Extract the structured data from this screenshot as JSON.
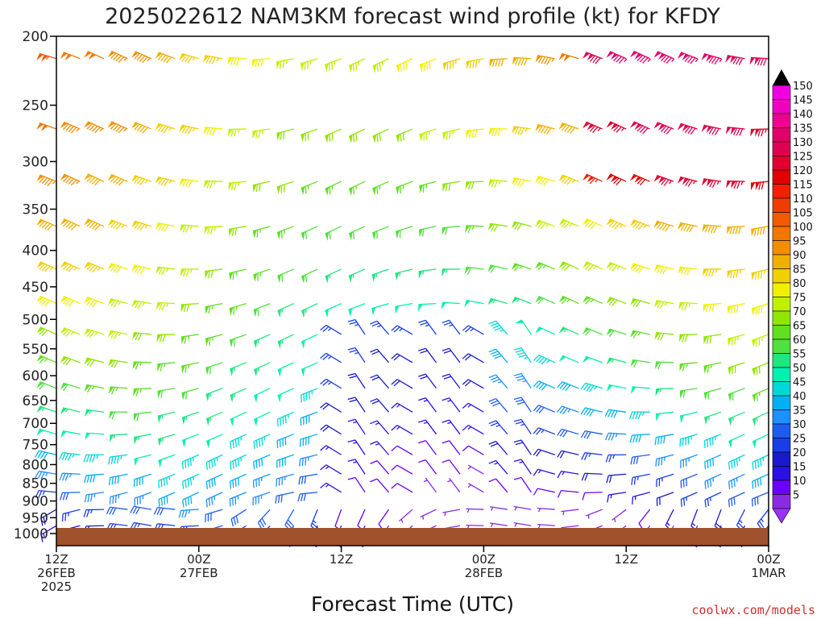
{
  "header": {
    "title": "2025022612 NAM3KM forecast wind profile (kt) for KFDY"
  },
  "footer": {
    "credit": "coolwx.com/models"
  },
  "chart_data": {
    "type": "wind_barb_profile",
    "title": "2025022612 NAM3KM forecast wind profile (kt) for KFDY",
    "xlabel": "Forecast Time (UTC)",
    "ylabel": "",
    "y_scale": "log",
    "ylim": [
      1000,
      200
    ],
    "xlim_hours": [
      0,
      60
    ],
    "y_ticks": [
      200,
      250,
      300,
      350,
      400,
      450,
      500,
      550,
      600,
      650,
      700,
      750,
      800,
      850,
      900,
      950,
      1000
    ],
    "x_ticks": [
      {
        "hour": 0,
        "lines": [
          "12Z",
          "26FEB",
          "2025"
        ]
      },
      {
        "hour": 12,
        "lines": [
          "00Z",
          "27FEB"
        ]
      },
      {
        "hour": 24,
        "lines": [
          "12Z"
        ]
      },
      {
        "hour": 36,
        "lines": [
          "00Z",
          "28FEB"
        ]
      },
      {
        "hour": 48,
        "lines": [
          "12Z"
        ]
      },
      {
        "hour": 60,
        "lines": [
          "00Z",
          "1MAR"
        ]
      }
    ],
    "levels": [
      215,
      270,
      320,
      370,
      425,
      475,
      525,
      575,
      625,
      675,
      725,
      775,
      825,
      875,
      925,
      975
    ],
    "forecast_hours": [
      0,
      2,
      4,
      6,
      8,
      10,
      12,
      14,
      16,
      18,
      20,
      22,
      24,
      26,
      28,
      30,
      32,
      34,
      36,
      38,
      40,
      42,
      44,
      46,
      48,
      50,
      52,
      54,
      56,
      58,
      60
    ],
    "terrain_surface_mb": 982,
    "colorbar": {
      "labels": [
        5,
        10,
        15,
        20,
        25,
        30,
        35,
        40,
        45,
        50,
        55,
        60,
        65,
        70,
        75,
        80,
        85,
        90,
        95,
        100,
        105,
        110,
        115,
        120,
        125,
        130,
        135,
        140,
        145,
        150
      ],
      "colors": [
        "#8a2be2",
        "#6a00ff",
        "#2a10e6",
        "#1a1acc",
        "#1a3ee6",
        "#1e5cf0",
        "#1e90ff",
        "#00b0f0",
        "#00d8d8",
        "#00f0b0",
        "#20e680",
        "#50e040",
        "#60e020",
        "#90e600",
        "#c0f000",
        "#f0f000",
        "#f0d000",
        "#f0b000",
        "#f09000",
        "#f07800",
        "#f05a00",
        "#f03c00",
        "#f02000",
        "#e00000",
        "#e00030",
        "#e00050",
        "#e0006a",
        "#ee0090",
        "#f000c0",
        "#f000e0"
      ],
      "top_color": "#000000",
      "bottom_color": "#9b30ff"
    }
  }
}
